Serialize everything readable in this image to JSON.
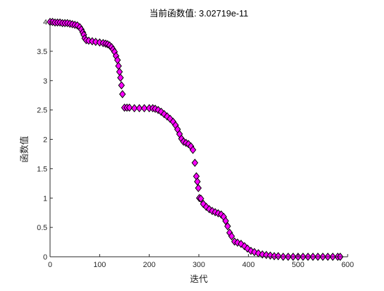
{
  "chart_data": {
    "type": "scatter",
    "title": "当前函数值: 3.02719e-11",
    "xlabel": "迭代",
    "ylabel": "函数值",
    "xlim": [
      0,
      600
    ],
    "ylim": [
      0,
      4
    ],
    "xticks": [
      "0",
      "100",
      "200",
      "300",
      "400",
      "500",
      "600"
    ],
    "yticks": [
      "0",
      "0.5",
      "1",
      "1.5",
      "2",
      "2.5",
      "3",
      "3.5",
      "4"
    ],
    "grid": false,
    "marker": "diamond",
    "marker_face_color": "#ff00ff",
    "marker_edge_color": "#000000",
    "series": [
      {
        "points": [
          [
            0,
            4.0
          ],
          [
            5,
            4.0
          ],
          [
            10,
            3.99
          ],
          [
            15,
            3.99
          ],
          [
            20,
            3.99
          ],
          [
            25,
            3.98
          ],
          [
            30,
            3.98
          ],
          [
            35,
            3.98
          ],
          [
            40,
            3.97
          ],
          [
            45,
            3.96
          ],
          [
            50,
            3.95
          ],
          [
            55,
            3.94
          ],
          [
            60,
            3.91
          ],
          [
            63,
            3.87
          ],
          [
            66,
            3.82
          ],
          [
            68,
            3.78
          ],
          [
            70,
            3.72
          ],
          [
            73,
            3.69
          ],
          [
            78,
            3.68
          ],
          [
            85,
            3.67
          ],
          [
            92,
            3.66
          ],
          [
            100,
            3.65
          ],
          [
            107,
            3.64
          ],
          [
            112,
            3.63
          ],
          [
            116,
            3.62
          ],
          [
            120,
            3.6
          ],
          [
            124,
            3.57
          ],
          [
            127,
            3.53
          ],
          [
            130,
            3.49
          ],
          [
            133,
            3.42
          ],
          [
            136,
            3.35
          ],
          [
            138,
            3.25
          ],
          [
            140,
            3.15
          ],
          [
            142,
            3.05
          ],
          [
            144,
            2.92
          ],
          [
            146,
            2.77
          ],
          [
            150,
            2.54
          ],
          [
            155,
            2.54
          ],
          [
            160,
            2.54
          ],
          [
            170,
            2.53
          ],
          [
            180,
            2.53
          ],
          [
            190,
            2.53
          ],
          [
            200,
            2.53
          ],
          [
            207,
            2.53
          ],
          [
            212,
            2.52
          ],
          [
            218,
            2.5
          ],
          [
            224,
            2.47
          ],
          [
            230,
            2.43
          ],
          [
            236,
            2.39
          ],
          [
            242,
            2.35
          ],
          [
            248,
            2.3
          ],
          [
            253,
            2.24
          ],
          [
            257,
            2.17
          ],
          [
            261,
            2.09
          ],
          [
            265,
            2.01
          ],
          [
            269,
            1.96
          ],
          [
            274,
            1.94
          ],
          [
            279,
            1.92
          ],
          [
            284,
            1.88
          ],
          [
            288,
            1.82
          ],
          [
            292,
            1.6
          ],
          [
            295,
            1.37
          ],
          [
            297,
            1.28
          ],
          [
            299,
            1.17
          ],
          [
            301,
            1.0
          ],
          [
            304,
            0.99
          ],
          [
            309,
            0.9
          ],
          [
            315,
            0.85
          ],
          [
            321,
            0.81
          ],
          [
            327,
            0.78
          ],
          [
            333,
            0.76
          ],
          [
            339,
            0.74
          ],
          [
            345,
            0.72
          ],
          [
            350,
            0.68
          ],
          [
            354,
            0.61
          ],
          [
            358,
            0.52
          ],
          [
            362,
            0.41
          ],
          [
            366,
            0.35
          ],
          [
            372,
            0.26
          ],
          [
            378,
            0.24
          ],
          [
            385,
            0.22
          ],
          [
            392,
            0.18
          ],
          [
            398,
            0.14
          ],
          [
            405,
            0.1
          ],
          [
            412,
            0.08
          ],
          [
            420,
            0.06
          ],
          [
            428,
            0.04
          ],
          [
            436,
            0.03
          ],
          [
            444,
            0.02
          ],
          [
            452,
            0.01
          ],
          [
            460,
            0.01
          ],
          [
            470,
            0.0
          ],
          [
            480,
            0.0
          ],
          [
            490,
            0.0
          ],
          [
            500,
            0.0
          ],
          [
            510,
            0.0
          ],
          [
            520,
            0.0
          ],
          [
            530,
            0.0
          ],
          [
            540,
            0.0
          ],
          [
            550,
            0.0
          ],
          [
            560,
            0.0
          ],
          [
            570,
            0.0
          ],
          [
            580,
            0.0
          ],
          [
            585,
            0.0
          ]
        ]
      }
    ]
  }
}
